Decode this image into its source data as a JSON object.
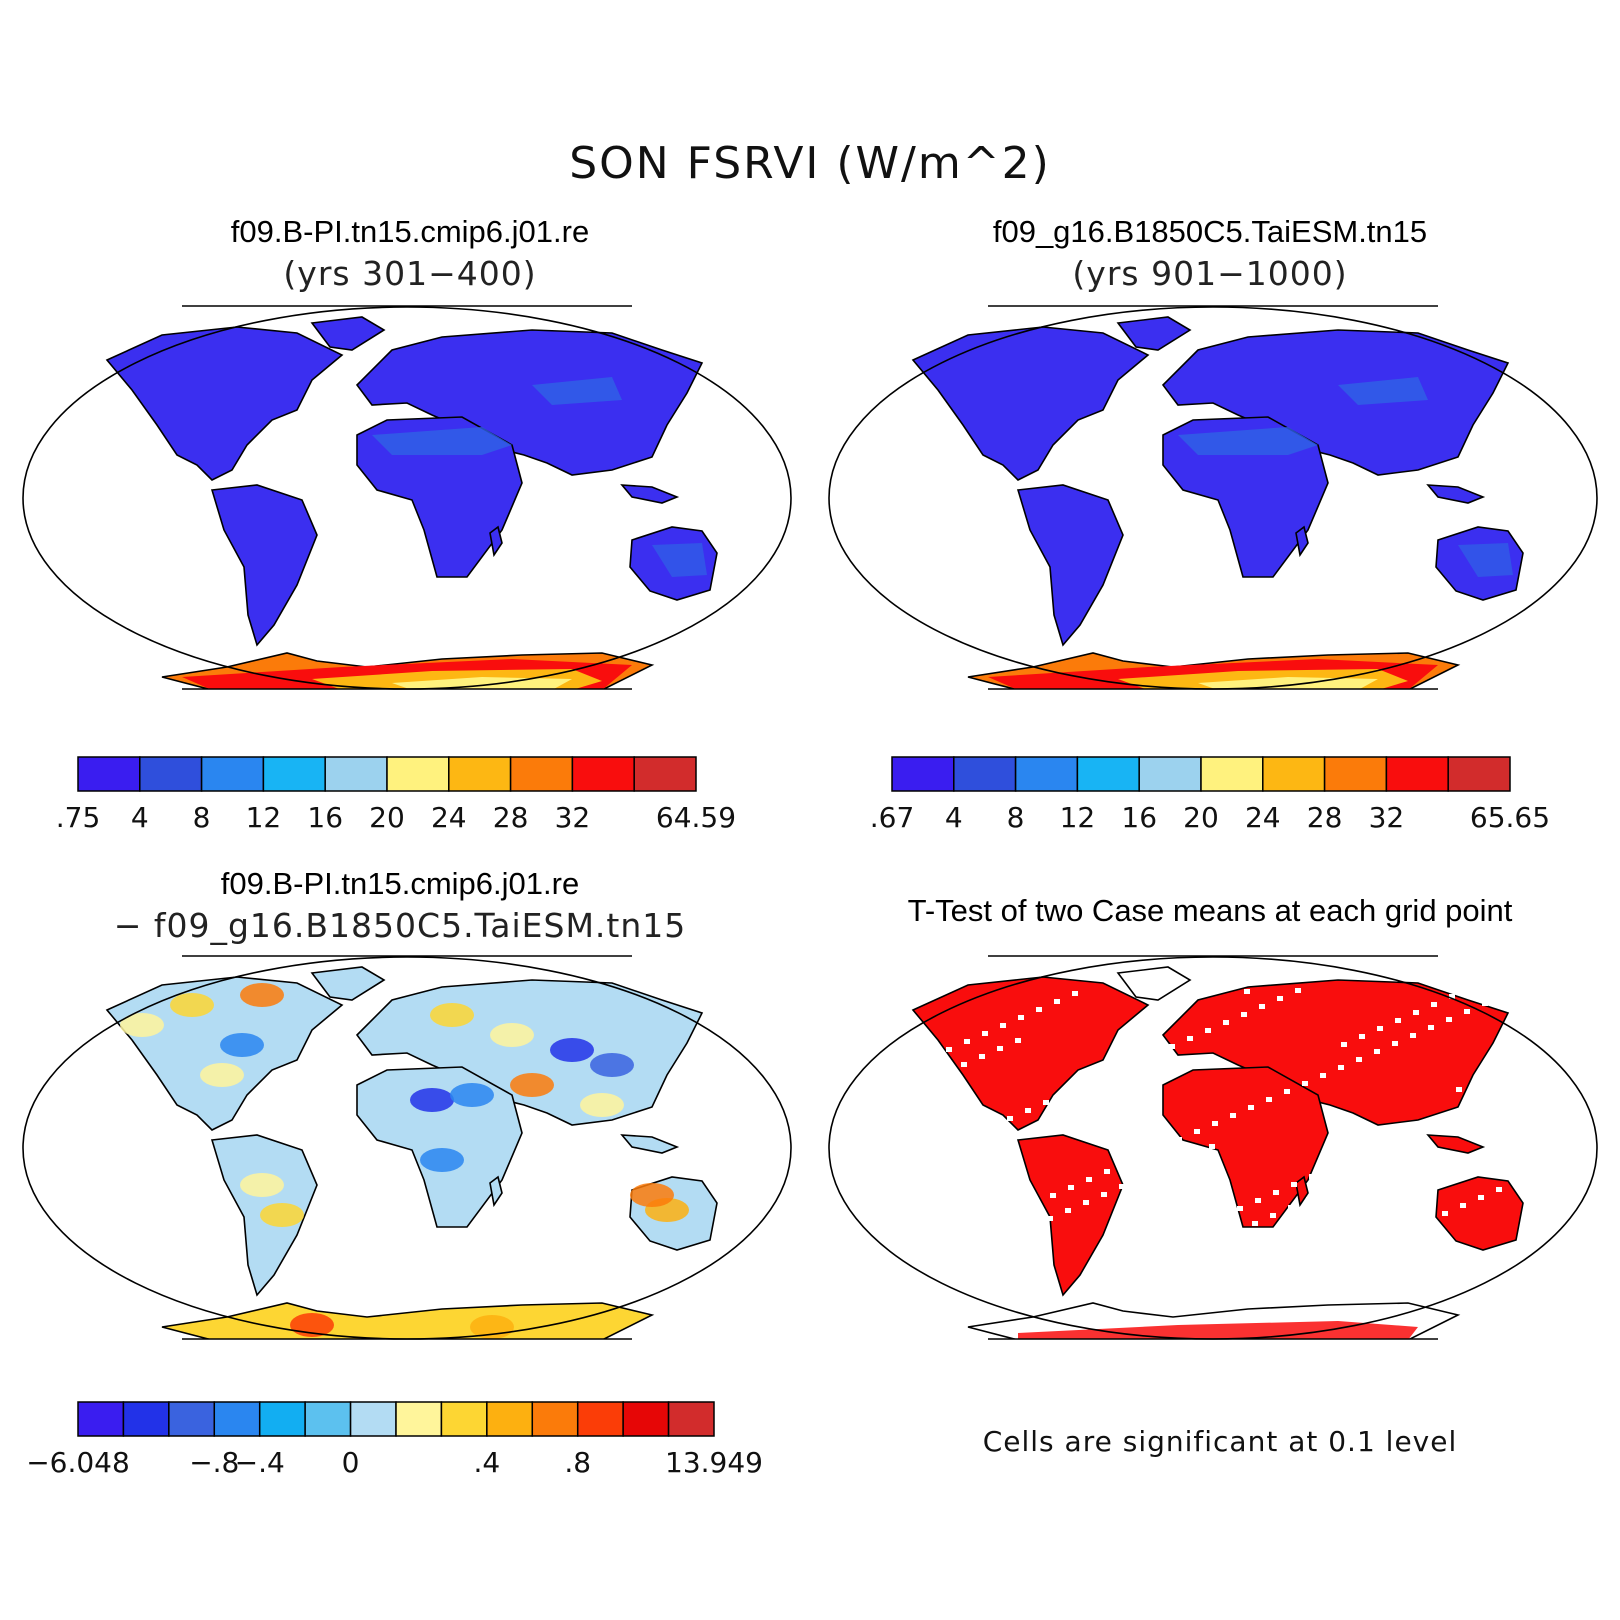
{
  "title": "SON FSRVI (W/m^2)",
  "panels": [
    {
      "id": "case1",
      "title": "f09.B-PI.tn15.cmip6.j01.re",
      "subtitle": "(yrs 301−400)"
    },
    {
      "id": "case2",
      "title": "f09_g16.B1850C5.TaiESM.tn15",
      "subtitle": "(yrs 901−1000)"
    },
    {
      "id": "diff",
      "title": "f09.B-PI.tn15.cmip6.j01.re",
      "subtitle": "− f09_g16.B1850C5.TaiESM.tn15"
    },
    {
      "id": "ttest",
      "title": "T-Test of two Case means at each grid point",
      "subtitle": ""
    }
  ],
  "colorbars": {
    "case1": {
      "colors": [
        "#3a1df0",
        "#2f4fdc",
        "#2a86f0",
        "#18b4f4",
        "#9cd2ee",
        "#fff27e",
        "#fdb713",
        "#fb7b0a",
        "#f90d0d",
        "#d22c2c"
      ],
      "labels": [
        ".75",
        "4",
        "8",
        "12",
        "16",
        "20",
        "24",
        "28",
        "32",
        "",
        "64.59"
      ]
    },
    "case2": {
      "colors": [
        "#3a1df0",
        "#2f4fdc",
        "#2a86f0",
        "#18b4f4",
        "#9cd2ee",
        "#fff27e",
        "#fdb713",
        "#fb7b0a",
        "#f90d0d",
        "#d22c2c"
      ],
      "labels": [
        ".67",
        "4",
        "8",
        "12",
        "16",
        "20",
        "24",
        "28",
        "32",
        "",
        "65.65"
      ]
    },
    "diff": {
      "colors": [
        "#3a1df0",
        "#2232e8",
        "#3a63df",
        "#2a86f0",
        "#12aef2",
        "#5cc1ef",
        "#b3dcf3",
        "#fff59b",
        "#fdd633",
        "#fdb010",
        "#fb7b0a",
        "#fb3d07",
        "#e60606",
        "#d22c2c"
      ],
      "labels": [
        "−6.048",
        "",
        "",
        "−.8",
        "−.4",
        "",
        "0",
        "",
        "",
        ".4",
        "",
        ".8",
        "",
        "",
        "13.949"
      ]
    }
  },
  "significance_note": "Cells are significant at 0.1 level",
  "chart_data": {
    "type": "heatmap",
    "variable": "FSRVI",
    "units": "W/m^2",
    "season": "SON",
    "maps": [
      {
        "name": "f09.B-PI.tn15.cmip6.j01.re (yrs 301−400)",
        "range": [
          0.75,
          64.59
        ],
        "levels": [
          4,
          8,
          12,
          16,
          20,
          24,
          28,
          32
        ]
      },
      {
        "name": "f09_g16.B1850C5.TaiESM.tn15 (yrs 901−1000)",
        "range": [
          0.67,
          65.65
        ],
        "levels": [
          4,
          8,
          12,
          16,
          20,
          24,
          28,
          32
        ]
      },
      {
        "name": "difference",
        "range": [
          -6.048,
          13.949
        ],
        "levels": [
          -0.8,
          -0.4,
          0,
          0.4,
          0.8
        ]
      },
      {
        "name": "t-test significance",
        "significance_level": 0.1
      }
    ]
  }
}
